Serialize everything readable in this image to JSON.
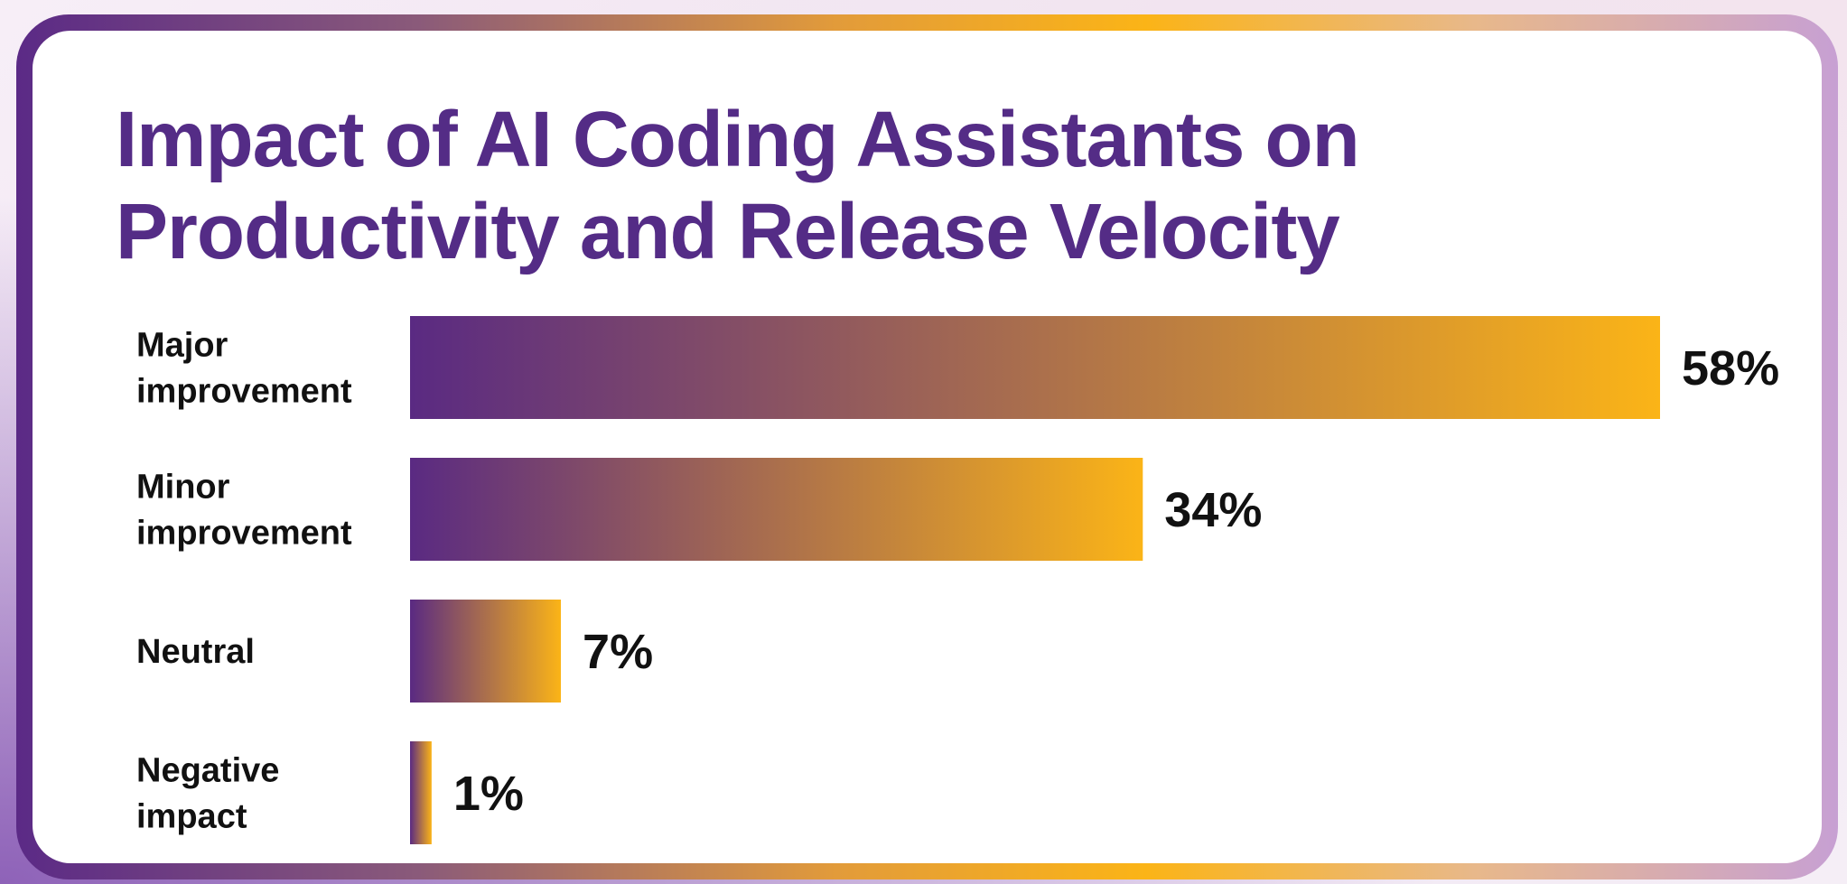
{
  "title_line1": "Impact of AI Coding Assistants on",
  "title_line2": "Productivity and Release Velocity",
  "colors": {
    "title": "#542c86",
    "bar_start": "#5a2a82",
    "bar_end": "#fbb417",
    "frame_gradient": [
      "#5b2a86",
      "#fbb417",
      "#c7a0d3"
    ]
  },
  "chart_data": {
    "type": "bar",
    "orientation": "horizontal",
    "categories": [
      [
        "Major",
        "improvement"
      ],
      [
        "Minor",
        "improvement"
      ],
      [
        "Neutral"
      ],
      [
        "Negative",
        "impact"
      ]
    ],
    "values": [
      58,
      34,
      7,
      1
    ],
    "value_labels": [
      "58%",
      "34%",
      "7%",
      "1%"
    ],
    "xlim": [
      0,
      58
    ],
    "grid": false,
    "legend": "none"
  }
}
